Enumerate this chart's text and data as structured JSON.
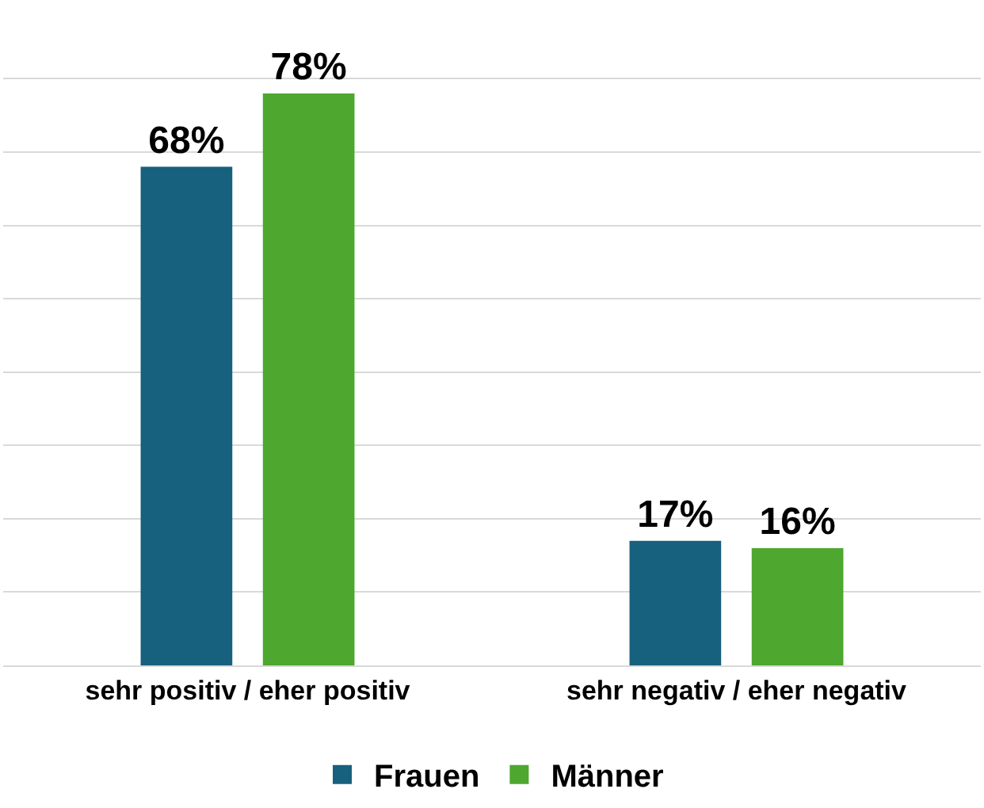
{
  "chart_data": {
    "type": "bar",
    "categories": [
      "sehr positiv / eher positiv",
      "sehr negativ / eher negativ"
    ],
    "series": [
      {
        "name": "Frauen",
        "color": "#17607e",
        "values": [
          68,
          17
        ],
        "value_labels": [
          "68%",
          "17%"
        ]
      },
      {
        "name": "Männer",
        "color": "#4ea72e",
        "values": [
          78,
          16
        ],
        "value_labels": [
          "78%",
          "16%"
        ]
      }
    ],
    "grid": "y",
    "legend": "bottom",
    "tick_labels": "x"
  }
}
